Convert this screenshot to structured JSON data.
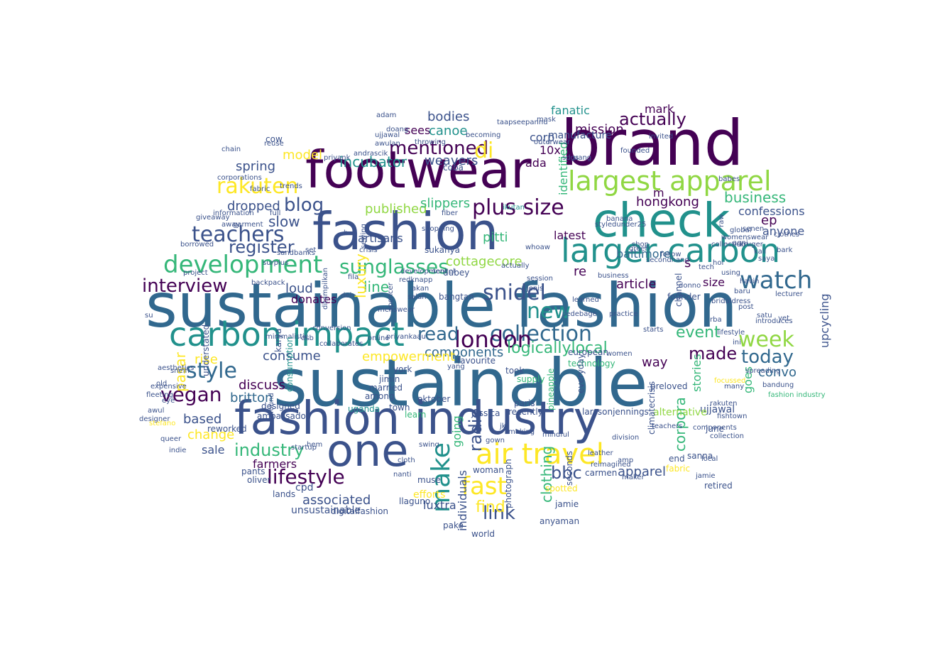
{
  "palette": {
    "c0": "#440154",
    "c1": "#3b528b",
    "c2": "#21918c",
    "c3": "#5ec962",
    "c4": "#fde725",
    "c5": "#31688e",
    "c6": "#35b779",
    "c7": "#90d743",
    "c8": "#482878"
  },
  "words": [
    {
      "text": "sustainable fashion",
      "color": "c5"
    },
    {
      "text": "sustainable",
      "color": "c5"
    },
    {
      "text": "fashion industry",
      "color": "c1"
    },
    {
      "text": "footwear",
      "color": "c0"
    },
    {
      "text": "fashion",
      "color": "c1"
    },
    {
      "text": "brand",
      "color": "c0"
    },
    {
      "text": "check",
      "color": "c2"
    },
    {
      "text": "larger carbon",
      "color": "c2"
    },
    {
      "text": "largest apparel",
      "color": "c7"
    },
    {
      "text": "carbon impact",
      "color": "c2"
    },
    {
      "text": "one",
      "color": "c1"
    },
    {
      "text": "air travel",
      "color": "c4"
    },
    {
      "text": "development",
      "color": "c6"
    },
    {
      "text": "collection",
      "color": "c5"
    },
    {
      "text": "teachers",
      "color": "c1"
    },
    {
      "text": "plus size",
      "color": "c0"
    },
    {
      "text": "watch",
      "color": "c5"
    },
    {
      "text": "week",
      "color": "c7"
    },
    {
      "text": "snidel",
      "color": "c1"
    },
    {
      "text": "new",
      "color": "c2"
    },
    {
      "text": "rakuten",
      "color": "c4"
    },
    {
      "text": "interview",
      "color": "c0"
    },
    {
      "text": "mentioned",
      "color": "c0"
    },
    {
      "text": "style",
      "color": "c5"
    },
    {
      "text": "vegan",
      "color": "c0"
    },
    {
      "text": "lifestyle",
      "color": "c0"
    },
    {
      "text": "fast",
      "color": "c4"
    },
    {
      "text": "make",
      "color": "c2"
    },
    {
      "text": "london",
      "color": "c0"
    },
    {
      "text": "read",
      "color": "c5"
    },
    {
      "text": "sunglasses",
      "color": "c6"
    },
    {
      "text": "actually",
      "color": "c0"
    },
    {
      "text": "blog",
      "color": "c1"
    },
    {
      "text": "today",
      "color": "c5"
    },
    {
      "text": "event",
      "color": "c6"
    },
    {
      "text": "made",
      "color": "c0"
    },
    {
      "text": "business",
      "color": "c6"
    },
    {
      "text": "link",
      "color": "c1"
    },
    {
      "text": "find",
      "color": "c4"
    },
    {
      "text": "bbc",
      "color": "c1"
    },
    {
      "text": "industry",
      "color": "c6"
    },
    {
      "text": "clothing",
      "color": "c6"
    },
    {
      "text": "radio",
      "color": "c1"
    },
    {
      "text": "di",
      "color": "c4"
    },
    {
      "text": "register",
      "color": "c1"
    },
    {
      "text": "logicallylocal",
      "color": "c6"
    },
    {
      "text": "confessions",
      "color": "c1"
    },
    {
      "text": "anyone",
      "color": "c1"
    },
    {
      "text": "hongkong",
      "color": "c0"
    },
    {
      "text": "mission",
      "color": "c0"
    },
    {
      "text": "pitti",
      "color": "c6"
    },
    {
      "text": "cottagecore",
      "color": "c7"
    },
    {
      "text": "published",
      "color": "c7"
    },
    {
      "text": "incubator",
      "color": "c2"
    },
    {
      "text": "weavers",
      "color": "c1"
    },
    {
      "text": "spring",
      "color": "c1"
    },
    {
      "text": "dropped",
      "color": "c1"
    },
    {
      "text": "slow",
      "color": "c1"
    },
    {
      "text": "model",
      "color": "c4"
    },
    {
      "text": "corp",
      "color": "c1"
    },
    {
      "text": "mark",
      "color": "c0"
    },
    {
      "text": "fanatic",
      "color": "c2"
    },
    {
      "text": "article",
      "color": "c0"
    },
    {
      "text": "baltimore",
      "color": "c5"
    },
    {
      "text": "latest",
      "color": "c0"
    },
    {
      "text": "identified",
      "color": "c6"
    },
    {
      "text": "upcycling",
      "color": "c1"
    },
    {
      "text": "artisans",
      "color": "c1"
    },
    {
      "text": "line",
      "color": "c6"
    },
    {
      "text": "loud",
      "color": "c1"
    },
    {
      "text": "donates",
      "color": "c0"
    },
    {
      "text": "components",
      "color": "c5"
    },
    {
      "text": "empowerment",
      "color": "c4"
    },
    {
      "text": "consume",
      "color": "c1"
    },
    {
      "text": "discuss",
      "color": "c0"
    },
    {
      "text": "britton",
      "color": "c5"
    },
    {
      "text": "based",
      "color": "c1"
    },
    {
      "text": "change",
      "color": "c4"
    },
    {
      "text": "sale",
      "color": "c1"
    },
    {
      "text": "rise",
      "color": "c4"
    },
    {
      "text": "farmers",
      "color": "c0"
    },
    {
      "text": "associated",
      "color": "c1"
    },
    {
      "text": "apparel",
      "color": "c1"
    },
    {
      "text": "convo",
      "color": "c5"
    },
    {
      "text": "stories",
      "color": "c6"
    },
    {
      "text": "way",
      "color": "c0"
    },
    {
      "text": "size",
      "color": "c0"
    },
    {
      "text": "ep",
      "color": "c0"
    },
    {
      "text": "goes",
      "color": "c6"
    },
    {
      "text": "sees",
      "color": "c0"
    },
    {
      "text": "bodies",
      "color": "c1"
    },
    {
      "text": "canoe",
      "color": "c2"
    },
    {
      "text": "ada",
      "color": "c0"
    },
    {
      "text": "10x",
      "color": "c0"
    },
    {
      "text": "slippers",
      "color": "c6"
    },
    {
      "text": "luxury",
      "color": "c4"
    },
    {
      "text": "corpora",
      "color": "c6"
    },
    {
      "text": "re",
      "color": "c0"
    },
    {
      "text": "pasar",
      "color": "c4"
    },
    {
      "text": "individuals",
      "color": "c1"
    },
    {
      "text": "going",
      "color": "c6"
    },
    {
      "text": "luxtra",
      "color": "c1"
    },
    {
      "text": "unsustainable",
      "color": "c1"
    },
    {
      "text": "cpd",
      "color": "c1"
    },
    {
      "text": "lands",
      "color": "c1"
    },
    {
      "text": "oliver",
      "color": "c1"
    },
    {
      "text": "pants",
      "color": "c1"
    },
    {
      "text": "indie",
      "color": "c1"
    },
    {
      "text": "queer",
      "color": "c1"
    },
    {
      "text": "reworked",
      "color": "c1"
    },
    {
      "text": "ambassador",
      "color": "c1"
    },
    {
      "text": "uganda",
      "color": "c2"
    },
    {
      "text": "jimin",
      "color": "c1"
    },
    {
      "text": "york",
      "color": "c1"
    },
    {
      "text": "married",
      "color": "c1"
    },
    {
      "text": "among",
      "color": "c1"
    },
    {
      "text": "favourite",
      "color": "c1"
    },
    {
      "text": "took",
      "color": "c1"
    },
    {
      "text": "paris",
      "color": "c1"
    },
    {
      "text": "pineapple",
      "color": "c6"
    },
    {
      "text": "larssonjennings",
      "color": "c1"
    },
    {
      "text": "ujjawal",
      "color": "c1"
    },
    {
      "text": "june",
      "color": "c1"
    },
    {
      "text": "alternative",
      "color": "c7"
    },
    {
      "text": "fabric",
      "color": "c4"
    },
    {
      "text": "end",
      "color": "c1"
    },
    {
      "text": "m",
      "color": "c0"
    },
    {
      "text": "s",
      "color": "c0"
    },
    {
      "text": "woman",
      "color": "c1"
    },
    {
      "text": "world",
      "color": "c1"
    },
    {
      "text": "pake",
      "color": "c1"
    },
    {
      "text": "muse",
      "color": "c1"
    },
    {
      "text": "llaguno",
      "color": "c1"
    },
    {
      "text": "efforts",
      "color": "c4"
    },
    {
      "text": "digitalfashion",
      "color": "c1"
    },
    {
      "text": "photograph",
      "color": "c1"
    },
    {
      "text": "carmen",
      "color": "c1"
    },
    {
      "text": "anyaman",
      "color": "c1"
    },
    {
      "text": "jamie",
      "color": "c1"
    },
    {
      "text": "seconds",
      "color": "c1"
    },
    {
      "text": "climatecrisis",
      "color": "c1"
    },
    {
      "text": "retired",
      "color": "c1"
    },
    {
      "text": "sanna",
      "color": "c1"
    },
    {
      "text": "collection",
      "color": "c1"
    },
    {
      "text": "fishtown",
      "color": "c1"
    },
    {
      "text": "preloved",
      "color": "c1"
    },
    {
      "text": "founder",
      "color": "c1"
    },
    {
      "text": "technology",
      "color": "c6"
    },
    {
      "text": "everyday",
      "color": "c1"
    },
    {
      "text": "jessica",
      "color": "c1"
    },
    {
      "text": "european",
      "color": "c1"
    },
    {
      "text": "town",
      "color": "c1"
    },
    {
      "text": "learn",
      "color": "c6"
    },
    {
      "text": "oktober",
      "color": "c1"
    },
    {
      "text": "supply",
      "color": "c6"
    },
    {
      "text": "channel",
      "color": "c1"
    },
    {
      "text": "minimalistic",
      "color": "c1"
    },
    {
      "text": "karya",
      "color": "c1"
    },
    {
      "text": "understated",
      "color": "c1"
    },
    {
      "text": "consumption",
      "color": "c2"
    },
    {
      "text": "designed",
      "color": "c1"
    },
    {
      "text": "borrowed",
      "color": "c1"
    },
    {
      "text": "project",
      "color": "c1"
    },
    {
      "text": "surplus",
      "color": "c1"
    },
    {
      "text": "giveaway",
      "color": "c1"
    },
    {
      "text": "information",
      "color": "c1"
    },
    {
      "text": "corporations",
      "color": "c1"
    },
    {
      "text": "fabric",
      "color": "c1"
    },
    {
      "text": "trends",
      "color": "c1"
    },
    {
      "text": "chain",
      "color": "c1"
    },
    {
      "text": "reuse",
      "color": "c1"
    },
    {
      "text": "cow",
      "color": "c1"
    },
    {
      "text": "priyank",
      "color": "c1"
    },
    {
      "text": "andrascik",
      "color": "c1"
    },
    {
      "text": "doang",
      "color": "c1"
    },
    {
      "text": "ujjawal",
      "color": "c1"
    },
    {
      "text": "awulan",
      "color": "c1"
    },
    {
      "text": "becoming",
      "color": "c1"
    },
    {
      "text": "throwing",
      "color": "c1"
    },
    {
      "text": "coba",
      "color": "c1"
    },
    {
      "text": "taapseepannu",
      "color": "c1"
    },
    {
      "text": "manufacture",
      "color": "c1"
    },
    {
      "text": "actually",
      "color": "c1"
    },
    {
      "text": "ikutan",
      "color": "c2"
    },
    {
      "text": "banana",
      "color": "c1"
    },
    {
      "text": "styledunder25",
      "color": "c1"
    },
    {
      "text": "sukanya",
      "color": "c1"
    },
    {
      "text": "dubey",
      "color": "c1"
    },
    {
      "text": "bangtan",
      "color": "c1"
    },
    {
      "text": "development",
      "color": "c1"
    },
    {
      "text": "menswear",
      "color": "c1"
    },
    {
      "text": "spencer",
      "color": "c1"
    },
    {
      "text": "salah",
      "color": "c1"
    },
    {
      "text": "akan",
      "color": "c1"
    },
    {
      "text": "redknapp",
      "color": "c1"
    },
    {
      "text": "jenis",
      "color": "c1"
    },
    {
      "text": "sedebage",
      "color": "c1"
    },
    {
      "text": "session",
      "color": "c1"
    },
    {
      "text": "whoaw",
      "color": "c1"
    },
    {
      "text": "learned",
      "color": "c1"
    },
    {
      "text": "business",
      "color": "c1"
    },
    {
      "text": "donno",
      "color": "c1"
    },
    {
      "text": "bridaldress",
      "color": "c1"
    },
    {
      "text": "baru",
      "color": "c1"
    },
    {
      "text": "satu",
      "color": "c1"
    },
    {
      "text": "yet",
      "color": "c1"
    },
    {
      "text": "saya",
      "color": "c1"
    },
    {
      "text": "bark",
      "color": "c1"
    },
    {
      "text": "kruger",
      "color": "c1"
    },
    {
      "text": "kali",
      "color": "c1"
    },
    {
      "text": "havin",
      "color": "c1"
    },
    {
      "text": "global",
      "color": "c1"
    },
    {
      "text": "senen",
      "color": "c1"
    },
    {
      "text": "agni",
      "color": "c1"
    },
    {
      "text": "shop",
      "color": "c1"
    },
    {
      "text": "follow",
      "color": "c1"
    },
    {
      "text": "secondhand",
      "color": "c1"
    },
    {
      "text": "green",
      "color": "c1"
    },
    {
      "text": "founded",
      "color": "c1"
    },
    {
      "text": "invited",
      "color": "c1"
    },
    {
      "text": "introduces",
      "color": "c1"
    },
    {
      "text": "fashion industry",
      "color": "c6"
    },
    {
      "text": "bandung",
      "color": "c1"
    },
    {
      "text": "spreading",
      "color": "c1"
    },
    {
      "text": "focussed",
      "color": "c4"
    },
    {
      "text": "many",
      "color": "c1"
    },
    {
      "text": "yang",
      "color": "c1"
    },
    {
      "text": "recently",
      "color": "c1"
    },
    {
      "text": "making",
      "color": "c1"
    },
    {
      "text": "gown",
      "color": "c1"
    },
    {
      "text": "jkt",
      "color": "c1"
    },
    {
      "text": "mindful",
      "color": "c1"
    },
    {
      "text": "leather",
      "color": "c1"
    },
    {
      "text": "reimagined",
      "color": "c1"
    },
    {
      "text": "outerwear",
      "color": "c1"
    },
    {
      "text": "adam",
      "color": "c1"
    },
    {
      "text": "fila",
      "color": "c1"
    },
    {
      "text": "deh",
      "color": "c1"
    },
    {
      "text": "awul",
      "color": "c1"
    },
    {
      "text": "snein",
      "color": "c1"
    },
    {
      "text": "stefano",
      "color": "c4"
    },
    {
      "text": "expensive",
      "color": "c1"
    },
    {
      "text": "fleeting",
      "color": "c1"
    },
    {
      "text": "eye",
      "color": "c1"
    },
    {
      "text": "old",
      "color": "c1"
    },
    {
      "text": "su",
      "color": "c1"
    },
    {
      "text": "aesthetics",
      "color": "c1"
    },
    {
      "text": "designer",
      "color": "c1"
    },
    {
      "text": "startup",
      "color": "c1"
    },
    {
      "text": "found",
      "color": "c1"
    },
    {
      "text": "sandbanks",
      "color": "c1"
    },
    {
      "text": "backpack",
      "color": "c1"
    },
    {
      "text": "garment",
      "color": "c1"
    },
    {
      "text": "away",
      "color": "c1"
    },
    {
      "text": "full",
      "color": "c1"
    },
    {
      "text": "set",
      "color": "c1"
    },
    {
      "text": "b",
      "color": "c1"
    },
    {
      "text": "crisis",
      "color": "c1"
    },
    {
      "text": "tencel",
      "color": "c1"
    },
    {
      "text": "sewing",
      "color": "c1"
    },
    {
      "text": "shopping",
      "color": "c1"
    },
    {
      "text": "fiber",
      "color": "c1"
    },
    {
      "text": "online",
      "color": "c1"
    },
    {
      "text": "priyankaau",
      "color": "c1"
    },
    {
      "text": "ditampilkan",
      "color": "c1"
    },
    {
      "text": "collaborates",
      "color": "c1"
    },
    {
      "text": "dsb",
      "color": "c1"
    },
    {
      "text": "conversion",
      "color": "c1"
    },
    {
      "text": "swing",
      "color": "c1"
    },
    {
      "text": "cloth",
      "color": "c1"
    },
    {
      "text": "nanti",
      "color": "c1"
    },
    {
      "text": "hem",
      "color": "c1"
    },
    {
      "text": "sdgs",
      "color": "c1"
    },
    {
      "text": "uang",
      "color": "c1"
    },
    {
      "text": "spotted",
      "color": "c4"
    },
    {
      "text": "amp",
      "color": "c1"
    },
    {
      "text": "division",
      "color": "c1"
    },
    {
      "text": "practice",
      "color": "c1"
    },
    {
      "text": "women",
      "color": "c1"
    },
    {
      "text": "mask",
      "color": "c1"
    },
    {
      "text": "babes",
      "color": "c1"
    },
    {
      "text": "womenswear",
      "color": "c1"
    },
    {
      "text": "post",
      "color": "c1"
    },
    {
      "text": "rba",
      "color": "c1"
    },
    {
      "text": "using",
      "color": "c1"
    },
    {
      "text": "clothes",
      "color": "c1"
    },
    {
      "text": "lecturer",
      "color": "c1"
    },
    {
      "text": "collection",
      "color": "c1"
    },
    {
      "text": "lifestyle",
      "color": "c1"
    },
    {
      "text": "rakuten",
      "color": "c1"
    },
    {
      "text": "jamie",
      "color": "c1"
    },
    {
      "text": "local",
      "color": "c1"
    },
    {
      "text": "components",
      "color": "c1"
    },
    {
      "text": "teachers",
      "color": "c1"
    },
    {
      "text": "maker",
      "color": "c1"
    },
    {
      "text": "starts",
      "color": "c1"
    },
    {
      "text": "tech",
      "color": "c1"
    },
    {
      "text": "raw",
      "color": "c1"
    },
    {
      "text": "hoi",
      "color": "c1"
    },
    {
      "text": "ini",
      "color": "c1"
    }
  ]
}
